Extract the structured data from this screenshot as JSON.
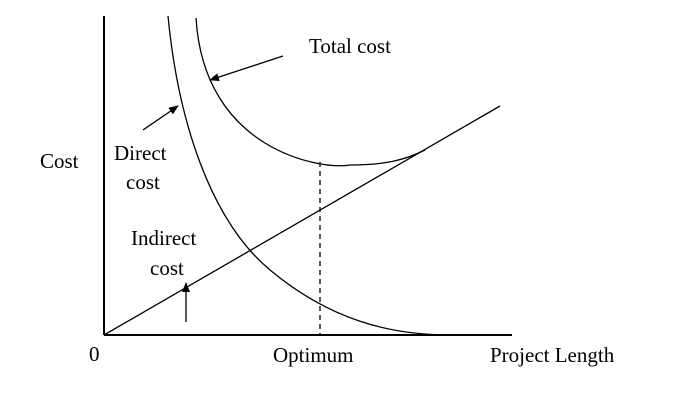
{
  "axes": {
    "y_label": "Cost",
    "x_label": "Project Length",
    "origin_label": "0",
    "x_marker_label": "Optimum"
  },
  "curves": {
    "total": {
      "label": "Total cost"
    },
    "direct": {
      "label_line1": "Direct",
      "label_line2": "cost"
    },
    "indirect": {
      "label_line1": "Indirect",
      "label_line2": "cost"
    }
  },
  "colors": {
    "ink": "#000000",
    "background": "#ffffff"
  }
}
